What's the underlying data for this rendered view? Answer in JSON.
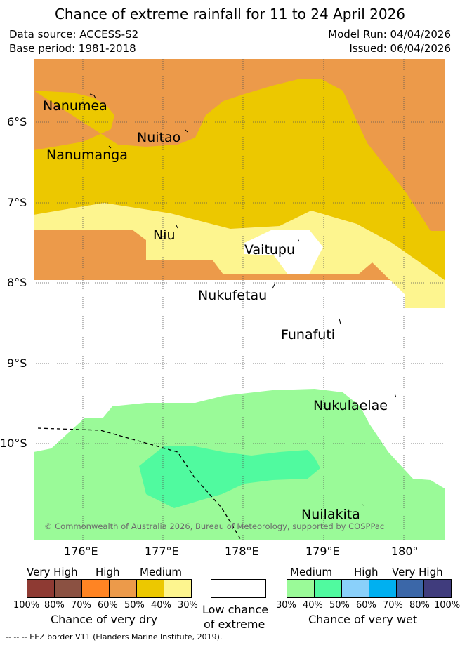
{
  "title": "Chance of extreme rainfall for 11 to 24 April 2026",
  "meta": {
    "data_source": "Data source: ACCESS-S2",
    "base_period": "Base period: 1981-2018",
    "model_run": "Model Run: 04/04/2026",
    "issued": "Issued: 06/04/2026"
  },
  "map": {
    "lat_ticks": [
      "6°S",
      "7°S",
      "8°S",
      "9°S",
      "10°S"
    ],
    "lon_ticks": [
      "176°E",
      "177°E",
      "178°E",
      "179°E",
      "180°"
    ],
    "places": {
      "nanumea": "Nanumea",
      "nuitao": "Nuitao",
      "nanumanga": "Nanumanga",
      "niu": "Niu",
      "vaitupu": "Vaitupu",
      "nukufetau": "Nukufetau",
      "funafuti": "Funafuti",
      "nukulaelae": "Nukulaelae",
      "nuilakita": "Nuilakita"
    },
    "copyright": "© Commonwealth of Australia 2026, Bureau of Meteorology, supported by COSPPac",
    "colors": {
      "dry_high": "#ec9a4a",
      "dry_medium": "#ecc800",
      "dry_low": "#fdf58f",
      "wet_medium": "#9afa98",
      "wet_high": "#50fa9f"
    }
  },
  "legend": {
    "dry": {
      "headers": [
        "Very High",
        "High",
        "Medium"
      ],
      "percents": [
        "100%",
        "80%",
        "70%",
        "60%",
        "50%",
        "40%",
        "30%"
      ],
      "caption": "Chance of very dry",
      "colors": [
        "#8e3a33",
        "#8b5142",
        "#ff8423",
        "#ec9a4a",
        "#ecc800",
        "#fdf58f"
      ]
    },
    "low": {
      "caption_line1": "Low chance",
      "caption_line2": "of extreme"
    },
    "wet": {
      "headers": [
        "Medium",
        "High",
        "Very High"
      ],
      "percents": [
        "30%",
        "40%",
        "50%",
        "60%",
        "70%",
        "80%",
        "100%"
      ],
      "caption": "Chance of very wet",
      "colors": [
        "#9afa98",
        "#50fa9f",
        "#8ad0fa",
        "#00b0f0",
        "#3b67a8",
        "#403c7d"
      ]
    }
  },
  "footer": "--  --  -- EEZ border V11 (Flanders Marine Institute, 2019)."
}
